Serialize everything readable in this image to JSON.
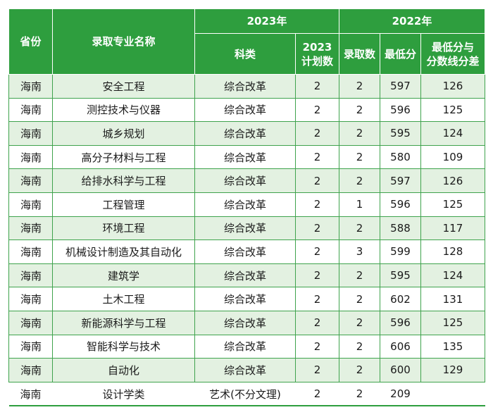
{
  "header": {
    "province": "省份",
    "major": "录取专业名称",
    "year2023": "2023年",
    "year2022": "2022年",
    "category": "科类",
    "plan2023": "2023\n计划数",
    "admitted": "录取数",
    "min_score": "最低分",
    "diff": "最低分与\n分数线分差"
  },
  "rows": [
    {
      "province": "海南",
      "major": "安全工程",
      "category": "综合改革",
      "plan": "2",
      "admitted": "2",
      "min": "597",
      "diff": "126"
    },
    {
      "province": "海南",
      "major": "测控技术与仪器",
      "category": "综合改革",
      "plan": "2",
      "admitted": "2",
      "min": "596",
      "diff": "125"
    },
    {
      "province": "海南",
      "major": "城乡规划",
      "category": "综合改革",
      "plan": "2",
      "admitted": "2",
      "min": "595",
      "diff": "124"
    },
    {
      "province": "海南",
      "major": "高分子材料与工程",
      "category": "综合改革",
      "plan": "2",
      "admitted": "2",
      "min": "580",
      "diff": "109"
    },
    {
      "province": "海南",
      "major": "给排水科学与工程",
      "category": "综合改革",
      "plan": "2",
      "admitted": "2",
      "min": "597",
      "diff": "126"
    },
    {
      "province": "海南",
      "major": "工程管理",
      "category": "综合改革",
      "plan": "2",
      "admitted": "1",
      "min": "596",
      "diff": "125"
    },
    {
      "province": "海南",
      "major": "环境工程",
      "category": "综合改革",
      "plan": "2",
      "admitted": "2",
      "min": "588",
      "diff": "117"
    },
    {
      "province": "海南",
      "major": "机械设计制造及其自动化",
      "category": "综合改革",
      "plan": "2",
      "admitted": "3",
      "min": "599",
      "diff": "128"
    },
    {
      "province": "海南",
      "major": "建筑学",
      "category": "综合改革",
      "plan": "2",
      "admitted": "2",
      "min": "595",
      "diff": "124"
    },
    {
      "province": "海南",
      "major": "土木工程",
      "category": "综合改革",
      "plan": "2",
      "admitted": "2",
      "min": "602",
      "diff": "131"
    },
    {
      "province": "海南",
      "major": "新能源科学与工程",
      "category": "综合改革",
      "plan": "2",
      "admitted": "2",
      "min": "596",
      "diff": "125"
    },
    {
      "province": "海南",
      "major": "智能科学与技术",
      "category": "综合改革",
      "plan": "2",
      "admitted": "2",
      "min": "606",
      "diff": "135"
    },
    {
      "province": "海南",
      "major": "自动化",
      "category": "综合改革",
      "plan": "2",
      "admitted": "2",
      "min": "600",
      "diff": "129"
    },
    {
      "province": "海南",
      "major": "设计学类",
      "category": "艺术(不分文理)",
      "plan": "2",
      "admitted": "2",
      "min": "209",
      "diff": ""
    }
  ],
  "colors": {
    "header_bg": "#2e9e3e",
    "row_alt_bg": "#e3f1e1",
    "border": "#3fa34d"
  }
}
